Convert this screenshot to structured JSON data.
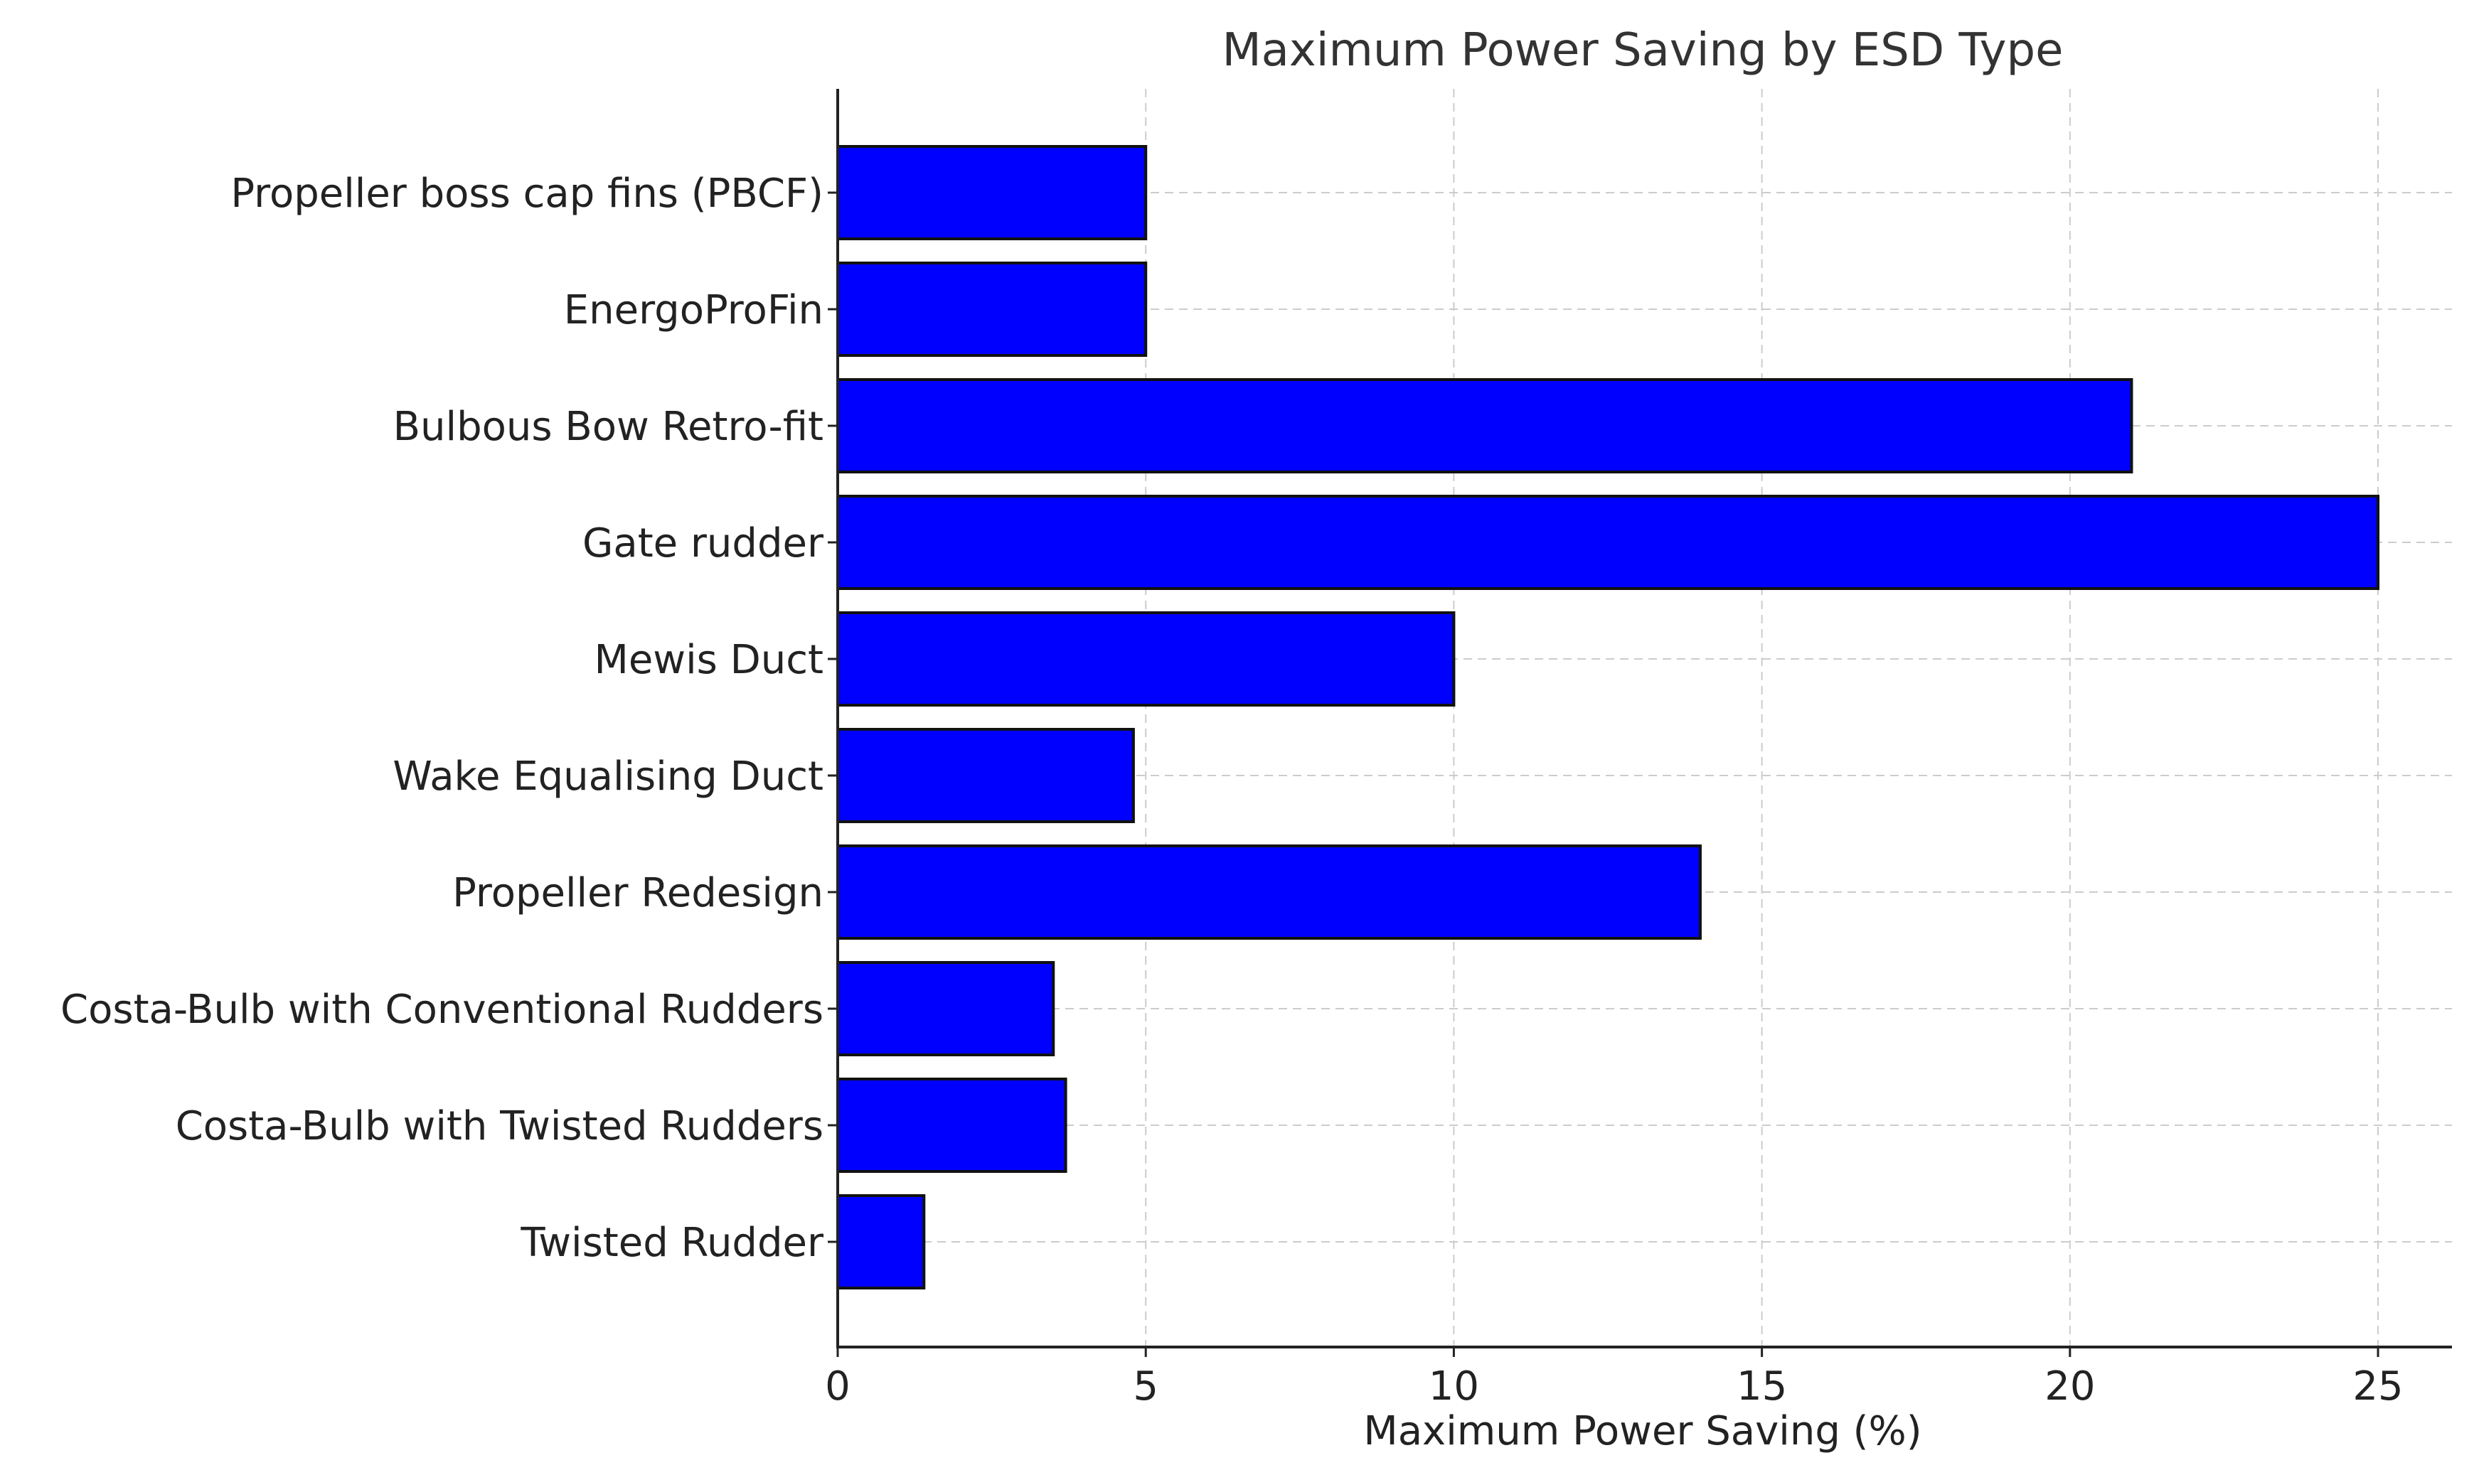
{
  "chart_data": {
    "type": "bar",
    "orientation": "horizontal",
    "title": "Maximum Power Saving by ESD Type",
    "xlabel": "Maximum Power Saving (%)",
    "ylabel": "",
    "xlim": [
      0,
      26.2
    ],
    "xticks": [
      0,
      5,
      10,
      15,
      20,
      25
    ],
    "grid": true,
    "bar_color": "#0000ff",
    "categories": [
      "Propeller boss cap fins (PBCF)",
      "EnergoProFin",
      "Bulbous Bow Retro-fit",
      "Gate rudder",
      "Mewis Duct",
      "Wake Equalising Duct",
      "Propeller Redesign",
      "Costa-Bulb with Conventional Rudders",
      "Costa-Bulb with Twisted Rudders",
      "Twisted Rudder"
    ],
    "values": [
      5,
      5,
      21,
      25,
      10,
      4.8,
      14,
      3.5,
      3.7,
      1.4
    ]
  }
}
